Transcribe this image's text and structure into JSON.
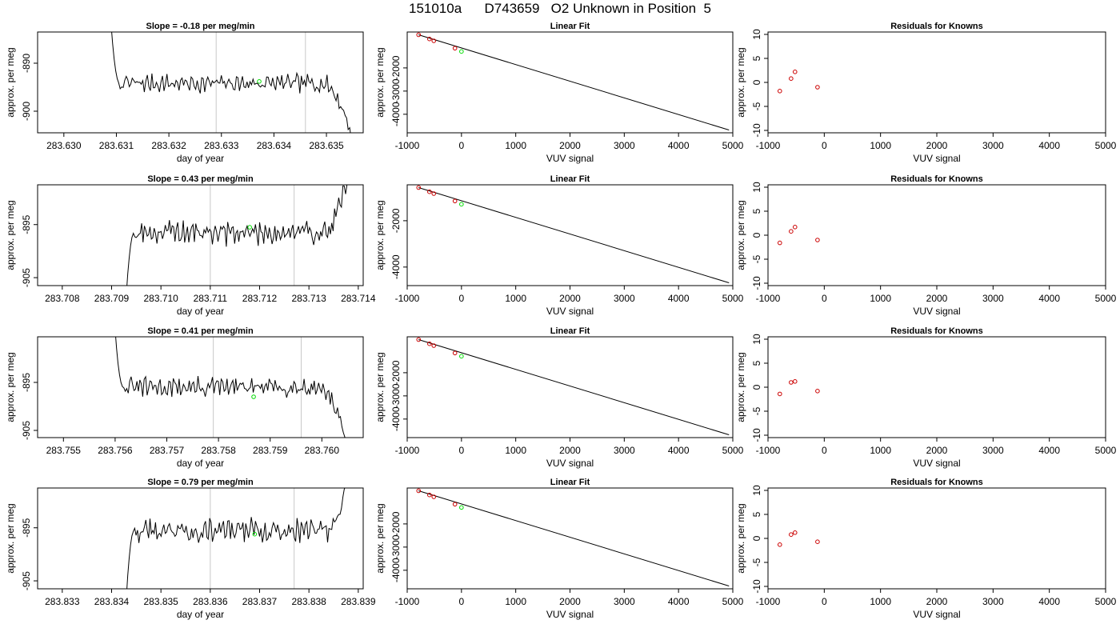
{
  "page_title": "151010a      D743659   O2 Unknown in Position  5",
  "colors": {
    "line": "#000000",
    "known_points": "#cc0000",
    "unknown_point": "#00dd00",
    "marker_lines": "#c8c8c8",
    "axes": "#000000"
  },
  "chart_data": [
    {
      "type": "line",
      "title": "Slope =  -0.18  per meg/min",
      "xlabel": "day of year",
      "ylabel": "approx. per meg",
      "x_ticks": [
        "283.630",
        "283.631",
        "283.632",
        "283.633",
        "283.634",
        "283.635"
      ],
      "y_ticks": [
        "-890",
        "-900"
      ],
      "xlim": [
        283.6295,
        283.6357
      ],
      "ylim": [
        -904.5,
        -883.5
      ],
      "vlines": [
        283.6329,
        283.6346
      ],
      "trace_start": 283.6309,
      "trace_end": 283.6355,
      "baseline": -894.2,
      "noise": 1.3,
      "seed": 7,
      "entry_top": -882,
      "exit_bottom": -906,
      "exit_start": 283.6349,
      "unknown_point": {
        "x": 283.63372,
        "y": -893.8
      }
    },
    {
      "type": "scatter",
      "title": "Linear Fit",
      "xlabel": "VUV signal",
      "ylabel": "approx. per meg",
      "x_ticks": [
        "-1000",
        "0",
        "1000",
        "2000",
        "3000",
        "4000",
        "5000"
      ],
      "y_ticks": [
        "-2000",
        "-3000",
        "-4000"
      ],
      "xlim": [
        -1000,
        5000
      ],
      "ylim": [
        -4800,
        -450
      ],
      "known_points": [
        {
          "x": -790,
          "y": -570
        },
        {
          "x": -590,
          "y": -750
        },
        {
          "x": -510,
          "y": -830
        },
        {
          "x": -120,
          "y": -1150
        }
      ],
      "unknown_point": {
        "x": 0,
        "y": -1290
      },
      "fit_line": [
        {
          "x": -790,
          "y": -570
        },
        {
          "x": 4930,
          "y": -4680
        }
      ]
    },
    {
      "type": "scatter",
      "title": "Residuals for Knowns",
      "xlabel": "VUV signal",
      "ylabel": "approx. per meg",
      "x_ticks": [
        "-1000",
        "0",
        "1000",
        "2000",
        "3000",
        "4000",
        "5000"
      ],
      "y_ticks": [
        "10",
        "5",
        "0",
        "-5",
        "-10"
      ],
      "xlim": [
        -1000,
        5000
      ],
      "ylim": [
        -10.5,
        10.5
      ],
      "points": [
        {
          "x": -790,
          "y": -1.8
        },
        {
          "x": -590,
          "y": 0.8
        },
        {
          "x": -520,
          "y": 2.2
        },
        {
          "x": -120,
          "y": -1.0
        }
      ]
    },
    {
      "type": "line",
      "title": "Slope =  0.43  per meg/min",
      "xlabel": "day of year",
      "ylabel": "approx. per meg",
      "x_ticks": [
        "283.708",
        "283.709",
        "283.710",
        "283.711",
        "283.712",
        "283.713",
        "283.714"
      ],
      "y_ticks": [
        "-895",
        "-905"
      ],
      "xlim": [
        283.7075,
        283.7141
      ],
      "ylim": [
        -906.5,
        -887.5
      ],
      "vlines": [
        283.711,
        283.7127
      ],
      "trace_start": 283.7093,
      "trace_end": 283.7138,
      "baseline": -896.5,
      "noise": 1.6,
      "seed": 19,
      "entry_top": -908,
      "exit_bottom": -885,
      "exit_start": 283.7133,
      "unknown_point": {
        "x": 283.7118,
        "y": -895.5
      }
    },
    {
      "type": "scatter",
      "title": "Linear Fit",
      "xlabel": "VUV signal",
      "ylabel": "approx. per meg",
      "x_ticks": [
        "-1000",
        "0",
        "1000",
        "2000",
        "3000",
        "4000",
        "5000"
      ],
      "y_ticks": [
        "-2000",
        "-4000"
      ],
      "xlim": [
        -1000,
        5000
      ],
      "ylim": [
        -4800,
        -450
      ],
      "known_points": [
        {
          "x": -790,
          "y": -570
        },
        {
          "x": -590,
          "y": -750
        },
        {
          "x": -510,
          "y": -830
        },
        {
          "x": -120,
          "y": -1150
        }
      ],
      "unknown_point": {
        "x": 0,
        "y": -1290
      },
      "fit_line": [
        {
          "x": -790,
          "y": -570
        },
        {
          "x": 4930,
          "y": -4680
        }
      ]
    },
    {
      "type": "scatter",
      "title": "Residuals for Knowns",
      "xlabel": "VUV signal",
      "ylabel": "approx. per meg",
      "x_ticks": [
        "-1000",
        "0",
        "1000",
        "2000",
        "3000",
        "4000",
        "5000"
      ],
      "y_ticks": [
        "10",
        "5",
        "0",
        "-5",
        "-10"
      ],
      "xlim": [
        -1000,
        5000
      ],
      "ylim": [
        -10.5,
        10.5
      ],
      "points": [
        {
          "x": -790,
          "y": -1.6
        },
        {
          "x": -590,
          "y": 0.8
        },
        {
          "x": -520,
          "y": 1.7
        },
        {
          "x": -120,
          "y": -1.0
        }
      ]
    },
    {
      "type": "line",
      "title": "Slope =  0.41  per meg/min",
      "xlabel": "day of year",
      "ylabel": "approx. per meg",
      "x_ticks": [
        "283.755",
        "283.756",
        "283.757",
        "283.758",
        "283.759",
        "283.760"
      ],
      "y_ticks": [
        "-895",
        "-905"
      ],
      "xlim": [
        283.7545,
        283.7608
      ],
      "ylim": [
        -906.5,
        -885.5
      ],
      "vlines": [
        283.7579,
        283.7596
      ],
      "trace_start": 283.756,
      "trace_end": 283.7605,
      "baseline": -896.0,
      "noise": 1.4,
      "seed": 31,
      "entry_top": -884,
      "exit_bottom": -908,
      "exit_start": 283.7599,
      "unknown_point": {
        "x": 283.75868,
        "y": -898.0
      }
    },
    {
      "type": "scatter",
      "title": "Linear Fit",
      "xlabel": "VUV signal",
      "ylabel": "approx. per meg",
      "x_ticks": [
        "-1000",
        "0",
        "1000",
        "2000",
        "3000",
        "4000",
        "5000"
      ],
      "y_ticks": [
        "-2000",
        "-3000",
        "-4000"
      ],
      "xlim": [
        -1000,
        5000
      ],
      "ylim": [
        -4800,
        -450
      ],
      "known_points": [
        {
          "x": -790,
          "y": -570
        },
        {
          "x": -590,
          "y": -750
        },
        {
          "x": -510,
          "y": -830
        },
        {
          "x": -120,
          "y": -1150
        }
      ],
      "unknown_point": {
        "x": 0,
        "y": -1290
      },
      "fit_line": [
        {
          "x": -790,
          "y": -570
        },
        {
          "x": 4930,
          "y": -4680
        }
      ]
    },
    {
      "type": "scatter",
      "title": "Residuals for Knowns",
      "xlabel": "VUV signal",
      "ylabel": "approx. per meg",
      "x_ticks": [
        "-1000",
        "0",
        "1000",
        "2000",
        "3000",
        "4000",
        "5000"
      ],
      "y_ticks": [
        "10",
        "5",
        "0",
        "-5",
        "-10"
      ],
      "xlim": [
        -1000,
        5000
      ],
      "ylim": [
        -10.5,
        10.5
      ],
      "points": [
        {
          "x": -790,
          "y": -1.4
        },
        {
          "x": -590,
          "y": 1.0
        },
        {
          "x": -520,
          "y": 1.2
        },
        {
          "x": -120,
          "y": -0.8
        }
      ]
    },
    {
      "type": "line",
      "title": "Slope =  0.79  per meg/min",
      "xlabel": "day of year",
      "ylabel": "approx. per meg",
      "x_ticks": [
        "283.833",
        "283.834",
        "283.835",
        "283.836",
        "283.837",
        "283.838",
        "283.839"
      ],
      "y_ticks": [
        "-895",
        "-905"
      ],
      "xlim": [
        283.8325,
        283.8391
      ],
      "ylim": [
        -906.5,
        -887.5
      ],
      "vlines": [
        283.836,
        283.8377
      ],
      "trace_start": 283.8343,
      "trace_end": 283.8388,
      "baseline": -895.5,
      "noise": 1.5,
      "seed": 43,
      "entry_top": -908,
      "exit_bottom": -885,
      "exit_start": 283.8384,
      "unknown_point": {
        "x": 283.8369,
        "y": -896.2
      }
    },
    {
      "type": "scatter",
      "title": "Linear Fit",
      "xlabel": "VUV signal",
      "ylabel": "approx. per meg",
      "x_ticks": [
        "-1000",
        "0",
        "1000",
        "2000",
        "3000",
        "4000",
        "5000"
      ],
      "y_ticks": [
        "-2000",
        "-3000",
        "-4000"
      ],
      "xlim": [
        -1000,
        5000
      ],
      "ylim": [
        -4800,
        -450
      ],
      "known_points": [
        {
          "x": -790,
          "y": -570
        },
        {
          "x": -590,
          "y": -750
        },
        {
          "x": -510,
          "y": -830
        },
        {
          "x": -120,
          "y": -1150
        }
      ],
      "unknown_point": {
        "x": 0,
        "y": -1290
      },
      "fit_line": [
        {
          "x": -790,
          "y": -570
        },
        {
          "x": 4930,
          "y": -4680
        }
      ]
    },
    {
      "type": "scatter",
      "title": "Residuals for Knowns",
      "xlabel": "VUV signal",
      "ylabel": "approx. per meg",
      "x_ticks": [
        "-1000",
        "0",
        "1000",
        "2000",
        "3000",
        "4000",
        "5000"
      ],
      "y_ticks": [
        "10",
        "5",
        "0",
        "-5",
        "-10"
      ],
      "xlim": [
        -1000,
        5000
      ],
      "ylim": [
        -10.5,
        10.5
      ],
      "points": [
        {
          "x": -790,
          "y": -1.3
        },
        {
          "x": -590,
          "y": 0.8
        },
        {
          "x": -520,
          "y": 1.2
        },
        {
          "x": -120,
          "y": -0.7
        }
      ]
    }
  ]
}
